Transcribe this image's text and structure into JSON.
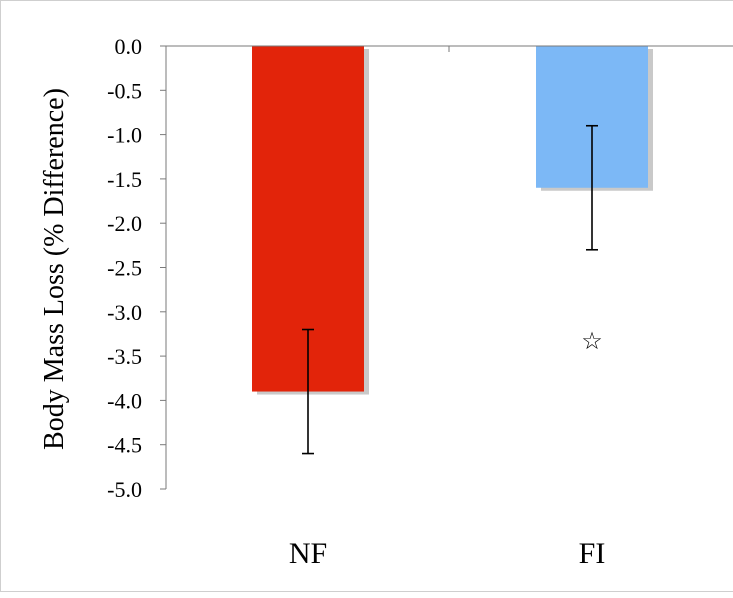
{
  "chart_data": {
    "type": "bar",
    "title": "",
    "xlabel": "",
    "ylabel": "Body Mass Loss (% Difference)",
    "ylim": [
      -5.0,
      0.0
    ],
    "yticks": [
      "0.0",
      "-0.5",
      "-1.0",
      "-1.5",
      "-2.0",
      "-2.5",
      "-3.0",
      "-3.5",
      "-4.0",
      "-4.5",
      "-5.0"
    ],
    "grid": false,
    "categories": [
      "NF",
      "FI"
    ],
    "values": [
      -3.9,
      -1.6
    ],
    "error_low": [
      -4.6,
      -2.3
    ],
    "error_high": [
      -3.2,
      -0.9
    ],
    "bar_colors": [
      "#e2240a",
      "#7cb8f6"
    ],
    "annotations": [
      {
        "category": "FI",
        "symbol": "☆",
        "y": -3.33
      }
    ]
  }
}
